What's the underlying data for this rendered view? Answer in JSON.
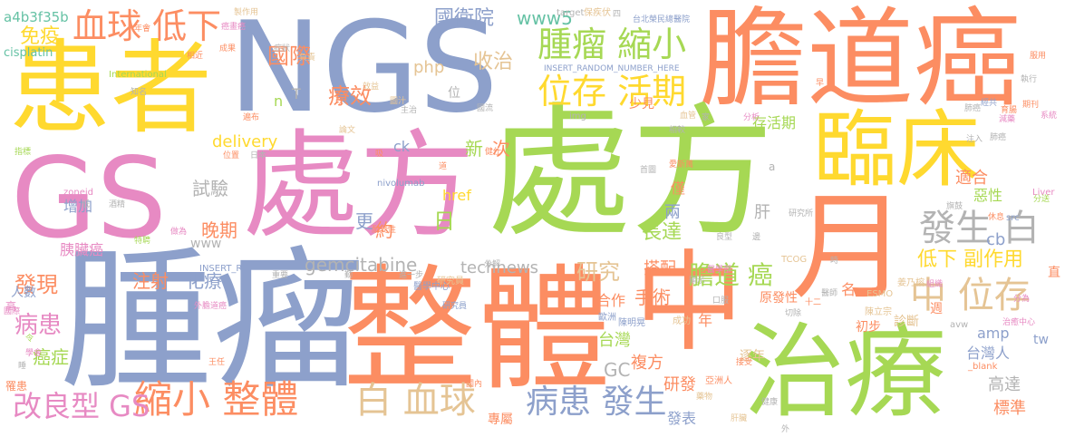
{
  "palette": {
    "pink": "#E78AC3",
    "orange": "#FC8D62",
    "green": "#A6D854",
    "yellow": "#FFD92F",
    "blue": "#8DA0CB",
    "tan": "#E5C494",
    "gray": "#B3B3B3",
    "teal": "#66C2A5"
  },
  "words": [
    {
      "text": "處方",
      "color": "green"
    },
    {
      "text": "處方",
      "color": "pink"
    },
    {
      "text": "NGS",
      "color": "blue"
    },
    {
      "text": "膽道癌",
      "color": "orange"
    },
    {
      "text": "患者",
      "color": "yellow"
    },
    {
      "text": "腫瘤",
      "color": "blue"
    },
    {
      "text": "整體",
      "color": "orange"
    },
    {
      "text": "中",
      "color": "orange"
    },
    {
      "text": "GS",
      "color": "pink"
    },
    {
      "text": "臨床",
      "color": "yellow"
    },
    {
      "text": "月",
      "color": "orange"
    },
    {
      "text": "治療",
      "color": "green"
    },
    {
      "text": "腫瘤 縮小",
      "color": "green"
    },
    {
      "text": "位存 活期",
      "color": "yellow"
    },
    {
      "text": "血球 低下",
      "color": "orange"
    },
    {
      "text": "發生 白",
      "color": "gray"
    },
    {
      "text": "中 位存",
      "color": "tan"
    },
    {
      "text": "縮小 整體",
      "color": "orange"
    },
    {
      "text": "白 血球",
      "color": "tan"
    },
    {
      "text": "病患 發生",
      "color": "blue"
    },
    {
      "text": "改良型 GS",
      "color": "pink"
    },
    {
      "text": "膽道 癌",
      "color": "green"
    },
    {
      "text": "低下 副作用",
      "color": "yellow"
    },
    {
      "text": "國際",
      "color": "orange"
    },
    {
      "text": "療效",
      "color": "orange"
    },
    {
      "text": "國衛院",
      "color": "blue"
    },
    {
      "text": "收治",
      "color": "tan"
    },
    {
      "text": "www5",
      "color": "teal"
    },
    {
      "text": "php",
      "color": "tan"
    },
    {
      "text": "免疫",
      "color": "yellow"
    },
    {
      "text": "a4b3f35b",
      "color": "teal"
    },
    {
      "text": "cisplatin",
      "color": "teal"
    },
    {
      "text": "研究",
      "color": "tan"
    },
    {
      "text": "手術",
      "color": "orange"
    },
    {
      "text": "gemcitabine",
      "color": "gray"
    },
    {
      "text": "technews",
      "color": "gray"
    },
    {
      "text": "delivery",
      "color": "yellow"
    },
    {
      "text": "試驗",
      "color": "gray"
    },
    {
      "text": "晚期",
      "color": "orange"
    },
    {
      "text": "化療",
      "color": "blue"
    },
    {
      "text": "注射",
      "color": "orange"
    },
    {
      "text": "發現",
      "color": "orange"
    },
    {
      "text": "病患",
      "color": "pink"
    },
    {
      "text": "癌症",
      "color": "green"
    },
    {
      "text": "人數",
      "color": "blue"
    },
    {
      "text": "胰臟癌",
      "color": "pink"
    },
    {
      "text": "增加",
      "color": "blue"
    },
    {
      "text": "更",
      "color": "blue"
    },
    {
      "text": "約",
      "color": "orange"
    },
    {
      "text": "日",
      "color": "green"
    },
    {
      "text": "新",
      "color": "green"
    },
    {
      "text": "次",
      "color": "orange"
    },
    {
      "text": "ck",
      "color": "blue"
    },
    {
      "text": "href",
      "color": "yellow"
    },
    {
      "text": "長達",
      "color": "green"
    },
    {
      "text": "搭配",
      "color": "orange"
    },
    {
      "text": "兩",
      "color": "blue"
    },
    {
      "text": "僅",
      "color": "orange"
    },
    {
      "text": "肝",
      "color": "gray"
    },
    {
      "text": "少見",
      "color": "orange"
    },
    {
      "text": "存活期",
      "color": "green"
    },
    {
      "text": "適合",
      "color": "orange"
    },
    {
      "text": "惡性",
      "color": "green"
    },
    {
      "text": "cb",
      "color": "blue"
    },
    {
      "text": "台灣",
      "color": "green"
    },
    {
      "text": "合作",
      "color": "orange"
    },
    {
      "text": "GC",
      "color": "gray"
    },
    {
      "text": "複方",
      "color": "orange"
    },
    {
      "text": "研發",
      "color": "orange"
    },
    {
      "text": "發表",
      "color": "blue"
    },
    {
      "text": "年",
      "color": "orange"
    },
    {
      "text": "名",
      "color": "orange"
    },
    {
      "text": "amp",
      "color": "blue"
    },
    {
      "text": "台灣人",
      "color": "blue"
    },
    {
      "text": "tw",
      "color": "blue"
    },
    {
      "text": "高達",
      "color": "gray"
    },
    {
      "text": "標準",
      "color": "orange"
    },
    {
      "text": "專屬",
      "color": "orange"
    },
    {
      "text": "初步",
      "color": "orange"
    },
    {
      "text": "診斷",
      "color": "tan"
    },
    {
      "text": "逐年",
      "color": "tan"
    },
    {
      "text": "原發性",
      "color": "orange"
    },
    {
      "text": "週",
      "color": "orange"
    },
    {
      "text": "www",
      "color": "gray"
    },
    {
      "text": "nivolumab",
      "color": "blue"
    },
    {
      "text": "INSERT_RANDOM_NUMBER_HERE",
      "color": "blue"
    },
    {
      "text": "target",
      "color": "gray"
    },
    {
      "text": "保疾伏",
      "color": "tan"
    },
    {
      "text": "台北榮民總醫院",
      "color": "blue"
    },
    {
      "text": "International",
      "color": "green"
    },
    {
      "text": "zoneid",
      "color": "pink"
    },
    {
      "text": "Liver",
      "color": "pink"
    },
    {
      "text": "ESMO",
      "color": "tan"
    },
    {
      "text": "TCOG",
      "color": "tan"
    },
    {
      "text": "INSERT_R",
      "color": "blue"
    },
    {
      "text": "_blank",
      "color": "orange"
    },
    {
      "text": "avw",
      "color": "gray"
    },
    {
      "text": "src",
      "color": "blue"
    },
    {
      "text": "img",
      "color": "gray"
    },
    {
      "text": "研究員",
      "color": "tan"
    },
    {
      "text": "醫學中心",
      "color": "blue"
    },
    {
      "text": "亞洲人",
      "color": "orange"
    },
    {
      "text": "歐洲",
      "color": "blue"
    },
    {
      "text": "陳明晃",
      "color": "blue"
    },
    {
      "text": "成功",
      "color": "tan"
    },
    {
      "text": "姜乃榕",
      "color": "tan"
    },
    {
      "text": "陳立宗",
      "color": "tan"
    },
    {
      "text": "外膽道癌",
      "color": "pink"
    },
    {
      "text": "治癒中心",
      "color": "pink"
    },
    {
      "text": "T",
      "color": "gray"
    },
    {
      "text": "n",
      "color": "green"
    },
    {
      "text": "位",
      "color": "gray"
    },
    {
      "text": "a",
      "color": "gray"
    },
    {
      "text": "高",
      "color": "pink"
    },
    {
      "text": "罹患",
      "color": "orange"
    },
    {
      "text": "直",
      "color": "orange"
    },
    {
      "text": "製作用",
      "color": "tan"
    },
    {
      "text": "成果",
      "color": "orange"
    },
    {
      "text": "相近",
      "color": "orange"
    },
    {
      "text": "症狀",
      "color": "gray"
    },
    {
      "text": "負責",
      "color": "tan"
    },
    {
      "text": "改",
      "color": "orange"
    },
    {
      "text": "執行",
      "color": "gray"
    },
    {
      "text": "服用",
      "color": "orange"
    },
    {
      "text": "育腸",
      "color": "orange"
    },
    {
      "text": "期刊",
      "color": "orange"
    },
    {
      "text": "系統",
      "color": "pink"
    },
    {
      "text": "知名",
      "color": "gray"
    },
    {
      "text": "遍布",
      "color": "orange"
    },
    {
      "text": "論文",
      "color": "tan"
    },
    {
      "text": "國流",
      "color": "gray"
    },
    {
      "text": "主治",
      "color": "gray"
    },
    {
      "text": "分析",
      "color": "pink"
    },
    {
      "text": "相較",
      "color": "gray"
    },
    {
      "text": "注入",
      "color": "gray"
    },
    {
      "text": "肺癌",
      "color": "gray"
    },
    {
      "text": "指標",
      "color": "green"
    },
    {
      "text": "日本",
      "color": "gray"
    },
    {
      "text": "位置",
      "color": "orange"
    },
    {
      "text": "健仕",
      "color": "orange"
    },
    {
      "text": "首圖",
      "color": "gray"
    },
    {
      "text": "愛斯萬",
      "color": "orange"
    },
    {
      "text": "分送",
      "color": "green"
    },
    {
      "text": "休息",
      "color": "orange"
    },
    {
      "text": "研究所",
      "color": "gray"
    },
    {
      "text": "旗鼓",
      "color": "gray"
    },
    {
      "text": "分解",
      "color": "gray"
    },
    {
      "text": "進一步",
      "color": "gray"
    },
    {
      "text": "醫學部",
      "color": "pink"
    },
    {
      "text": "良型",
      "color": "gray"
    },
    {
      "text": "研究員",
      "color": "blue"
    },
    {
      "text": "切除",
      "color": "gray"
    },
    {
      "text": "組織",
      "color": "pink"
    },
    {
      "text": "分為",
      "color": "pink"
    },
    {
      "text": "國際",
      "color": "pink"
    },
    {
      "text": "國內",
      "color": "orange"
    },
    {
      "text": "藥物",
      "color": "tan"
    },
    {
      "text": "肝臟",
      "color": "tan"
    },
    {
      "text": "健康",
      "color": "gray"
    },
    {
      "text": "外",
      "color": "gray"
    },
    {
      "text": "接受",
      "color": "orange"
    },
    {
      "text": "王任",
      "color": "orange"
    },
    {
      "text": "學會",
      "color": "pink"
    },
    {
      "text": "令",
      "color": "green"
    },
    {
      "text": "酒精",
      "color": "gray"
    },
    {
      "text": "特聘",
      "color": "green"
    },
    {
      "text": "做為",
      "color": "pink"
    },
    {
      "text": "耐受性",
      "color": "orange"
    },
    {
      "text": "口服",
      "color": "gray"
    },
    {
      "text": "十二",
      "color": "orange"
    },
    {
      "text": "顯示",
      "color": "gray"
    },
    {
      "text": "時",
      "color": "gray"
    },
    {
      "text": "四",
      "color": "gray"
    },
    {
      "text": "早",
      "color": "orange"
    },
    {
      "text": "血管",
      "color": "tan"
    },
    {
      "text": "家",
      "color": "gray"
    },
    {
      "text": "肺癌",
      "color": "gray"
    },
    {
      "text": "經共",
      "color": "blue"
    },
    {
      "text": "減藥",
      "color": "pink"
    },
    {
      "text": "效益",
      "color": "tan"
    },
    {
      "text": "圖汁",
      "color": "tan"
    },
    {
      "text": "癌畫癌",
      "color": "pink"
    },
    {
      "text": "年會",
      "color": "orange"
    },
    {
      "text": "醫師",
      "color": "gray"
    },
    {
      "text": "重要",
      "color": "gray"
    },
    {
      "text": "吸",
      "color": "orange"
    },
    {
      "text": "道",
      "color": "orange"
    },
    {
      "text": "低",
      "color": "gray"
    },
    {
      "text": "睡",
      "color": "gray"
    },
    {
      "text": "勤",
      "color": "gray"
    },
    {
      "text": "邊",
      "color": "gray"
    }
  ]
}
